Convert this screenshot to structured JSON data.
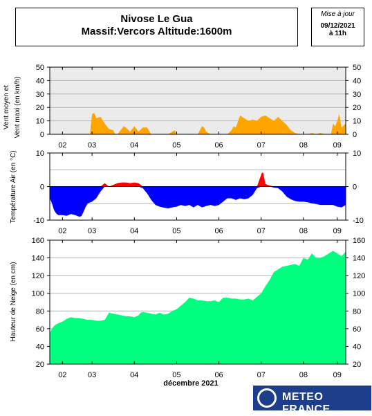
{
  "header": {
    "title": "Nivose Le Gua",
    "subtitle": "Massif:Vercors Altitude:1600m",
    "update_label": "Mise à jour",
    "update_date": "09/12/2021",
    "update_time": "à 11h"
  },
  "logo": {
    "text": "METEO FRANCE",
    "color": "#1d3e8a"
  },
  "colors": {
    "wind": "#ffa500",
    "temp_pos": "#ff0000",
    "temp_neg": "#0000ff",
    "snow": "#00ff7f"
  },
  "chart_data": [
    {
      "type": "area",
      "title": "",
      "ylabel": "Vent moyen et Vent maxi (en km/h)",
      "xlabel": "",
      "ylim": [
        0,
        50
      ],
      "yticks": [
        0,
        10,
        20,
        30,
        40,
        50
      ],
      "xlim": [
        0,
        7
      ],
      "xtick_positions": [
        0.3,
        1.0,
        2.0,
        3.0,
        4.0,
        5.0,
        6.0,
        6.8
      ],
      "xtick_labels": [
        "02",
        "03",
        "04",
        "05",
        "06",
        "07",
        "08",
        "09"
      ],
      "grid": true,
      "series": [
        {
          "color": "#ffa500",
          "x": [
            0.0,
            0.95,
            0.95,
            1.0,
            1.05,
            1.1,
            1.2,
            1.3,
            1.4,
            1.5,
            1.55,
            1.6,
            1.7,
            1.75,
            1.8,
            1.9,
            2.0,
            2.05,
            2.1,
            2.2,
            2.3,
            2.4,
            2.45,
            2.5,
            2.6,
            2.7,
            2.8,
            2.9,
            2.95,
            3.0,
            3.1,
            3.2,
            3.3,
            3.4,
            3.5,
            3.55,
            3.6,
            3.65,
            3.7,
            3.8,
            3.9,
            4.0,
            4.1,
            4.2,
            4.3,
            4.35,
            4.4,
            4.5,
            4.6,
            4.7,
            4.8,
            4.9,
            5.0,
            5.1,
            5.2,
            5.3,
            5.4,
            5.5,
            5.6,
            5.7,
            5.8,
            5.9,
            6.0,
            6.1,
            6.2,
            6.3,
            6.4,
            6.5,
            6.6,
            6.65,
            6.7,
            6.75,
            6.8,
            6.85,
            6.9,
            7.0
          ],
          "y": [
            0,
            0,
            0,
            15,
            16,
            12,
            13,
            8,
            4,
            3,
            0,
            0,
            4,
            6,
            5,
            2,
            6,
            4,
            2,
            5,
            5,
            0,
            0,
            0,
            0,
            0,
            0,
            2,
            3,
            0,
            0,
            0,
            0,
            0,
            0,
            3,
            6,
            5,
            2,
            0,
            0,
            0,
            0,
            0,
            3,
            6,
            5,
            14,
            12,
            10,
            11,
            10,
            13,
            14,
            12,
            10,
            13,
            10,
            7,
            3,
            1,
            0,
            0,
            0,
            1,
            0,
            1,
            0,
            0,
            0,
            8,
            6,
            10,
            15,
            5,
            8
          ],
          "note": "wind"
        }
      ]
    },
    {
      "type": "area",
      "title": "",
      "ylabel": "Température Air (en °C)",
      "xlabel": "",
      "ylim": [
        -10,
        10
      ],
      "yticks": [
        -10,
        0,
        10
      ],
      "xlim": [
        0,
        7
      ],
      "xtick_positions": [
        0.3,
        1.0,
        2.0,
        3.0,
        4.0,
        5.0,
        6.0,
        6.8
      ],
      "xtick_labels": [
        "02",
        "03",
        "04",
        "05",
        "06",
        "07",
        "08",
        "09"
      ],
      "grid": true,
      "series": [
        {
          "color_positive": "#ff0000",
          "color_negative": "#0000ff",
          "x": [
            0.0,
            0.05,
            0.1,
            0.15,
            0.2,
            0.3,
            0.4,
            0.5,
            0.6,
            0.7,
            0.75,
            0.8,
            0.85,
            0.9,
            1.0,
            1.1,
            1.2,
            1.3,
            1.35,
            1.4,
            1.5,
            1.6,
            1.7,
            1.8,
            1.9,
            2.0,
            2.1,
            2.2,
            2.3,
            2.4,
            2.5,
            2.6,
            2.7,
            2.8,
            2.9,
            3.0,
            3.1,
            3.2,
            3.3,
            3.4,
            3.5,
            3.6,
            3.7,
            3.8,
            3.9,
            4.0,
            4.1,
            4.2,
            4.3,
            4.4,
            4.5,
            4.6,
            4.7,
            4.8,
            4.9,
            5.0,
            5.02,
            5.05,
            5.08,
            5.1,
            5.15,
            5.2,
            5.3,
            5.4,
            5.5,
            5.6,
            5.7,
            5.8,
            5.9,
            6.0,
            6.1,
            6.2,
            6.3,
            6.4,
            6.5,
            6.6,
            6.7,
            6.8,
            6.9,
            7.0
          ],
          "y": [
            -3.5,
            -5,
            -7,
            -8,
            -8.5,
            -8.5,
            -8.7,
            -8.2,
            -8.5,
            -9,
            -8.8,
            -7.5,
            -6,
            -5,
            -4.5,
            -3.5,
            -1.5,
            1,
            0.5,
            0,
            0.5,
            1,
            1.2,
            1.2,
            1,
            1.2,
            1,
            -0.5,
            -2,
            -4,
            -5.5,
            -6,
            -6.3,
            -6.5,
            -6.2,
            -6,
            -5.5,
            -5.8,
            -5.5,
            -6.2,
            -5.5,
            -6.2,
            -5.8,
            -5.5,
            -5.8,
            -5.5,
            -4.5,
            -3.5,
            -3.5,
            -4,
            -3.5,
            -3.8,
            -3.5,
            -2.5,
            -0.5,
            3.5,
            4.2,
            4,
            2,
            0.8,
            0.5,
            0.3,
            -0.3,
            -0.5,
            -1.5,
            -3,
            -3.8,
            -4.3,
            -4.5,
            -4.5,
            -4.7,
            -5,
            -5.2,
            -5.5,
            -5.5,
            -5.5,
            -5.5,
            -6,
            -6.2,
            -5.5
          ],
          "note": "temperature"
        }
      ]
    },
    {
      "type": "area",
      "title": "",
      "ylabel": "Hauteur de Neige (en cm)",
      "xlabel": "décembre 2021",
      "ylim": [
        20,
        160
      ],
      "yticks": [
        20,
        40,
        60,
        80,
        100,
        120,
        140,
        160
      ],
      "xlim": [
        0,
        7
      ],
      "xtick_positions": [
        0.3,
        1.0,
        2.0,
        3.0,
        4.0,
        5.0,
        6.0,
        6.8
      ],
      "xtick_labels": [
        "02",
        "03",
        "04",
        "05",
        "06",
        "07",
        "08",
        "09"
      ],
      "grid": true,
      "series": [
        {
          "color": "#00ff7f",
          "x": [
            0.0,
            0.05,
            0.1,
            0.15,
            0.2,
            0.3,
            0.4,
            0.45,
            0.5,
            0.6,
            0.7,
            0.8,
            0.9,
            1.0,
            1.1,
            1.2,
            1.3,
            1.35,
            1.4,
            1.5,
            1.6,
            1.7,
            1.8,
            1.9,
            2.0,
            2.1,
            2.15,
            2.2,
            2.3,
            2.4,
            2.5,
            2.6,
            2.7,
            2.8,
            2.9,
            3.0,
            3.1,
            3.2,
            3.3,
            3.4,
            3.5,
            3.6,
            3.7,
            3.8,
            3.9,
            4.0,
            4.1,
            4.2,
            4.3,
            4.4,
            4.5,
            4.6,
            4.7,
            4.8,
            4.9,
            5.0,
            5.1,
            5.2,
            5.3,
            5.4,
            5.5,
            5.6,
            5.7,
            5.8,
            5.9,
            6.0,
            6.1,
            6.2,
            6.3,
            6.4,
            6.5,
            6.6,
            6.7,
            6.8,
            6.9,
            7.0
          ],
          "y": [
            55,
            60,
            63,
            65,
            66,
            68,
            71,
            72,
            73,
            72,
            72,
            71,
            70,
            70,
            69,
            69,
            70,
            74,
            78,
            77,
            76,
            75,
            74,
            74,
            73,
            75,
            78,
            79,
            78,
            77,
            76,
            78,
            76,
            77,
            80,
            82,
            86,
            90,
            95,
            94,
            92,
            92,
            91,
            91,
            92,
            90,
            95,
            95,
            94,
            94,
            93,
            93,
            94,
            92,
            96,
            100,
            108,
            115,
            124,
            127,
            130,
            131,
            132,
            133,
            131,
            140,
            138,
            145,
            140,
            140,
            142,
            145,
            148,
            145,
            142,
            147
          ],
          "note": "snow"
        }
      ]
    }
  ]
}
